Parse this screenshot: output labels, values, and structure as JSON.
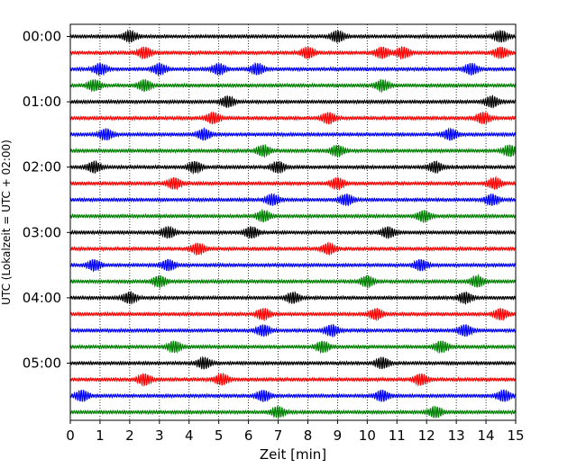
{
  "chart_data": {
    "type": "line",
    "title": "",
    "xlabel": "Zeit  [min]",
    "ylabel": "UTC (Lokalzeit = UTC + 02:00)",
    "xlim": [
      0,
      15
    ],
    "x_ticks": [
      0,
      1,
      2,
      3,
      4,
      5,
      6,
      7,
      8,
      9,
      10,
      11,
      12,
      13,
      14,
      15
    ],
    "x_tick_labels": [
      "0",
      "1",
      "2",
      "3",
      "4",
      "5",
      "6",
      "7",
      "8",
      "9",
      "10",
      "11",
      "12",
      "13",
      "14",
      "15"
    ],
    "y_tick_labels": [
      "00:00",
      "01:00",
      "02:00",
      "03:00",
      "04:00",
      "05:00"
    ],
    "grid": "vertical dotted",
    "trace_minutes_each": 15,
    "trace_count": 24,
    "trace_colors": [
      "#000000",
      "#ff0000",
      "#0000ff",
      "#008000"
    ],
    "series": [
      {
        "row_start": "00:00",
        "bursts_min": [
          2.0,
          9.0,
          14.5
        ]
      },
      {
        "row_start": "00:15",
        "bursts_min": [
          2.5,
          8.0,
          10.5,
          11.2,
          14.5
        ]
      },
      {
        "row_start": "00:30",
        "bursts_min": [
          1.0,
          3.0,
          5.0,
          6.3,
          13.5
        ]
      },
      {
        "row_start": "00:45",
        "bursts_min": [
          0.8,
          2.5,
          10.5
        ]
      },
      {
        "row_start": "01:00",
        "bursts_min": [
          5.3,
          14.2
        ]
      },
      {
        "row_start": "01:15",
        "bursts_min": [
          4.8,
          8.7,
          13.9
        ]
      },
      {
        "row_start": "01:30",
        "bursts_min": [
          1.2,
          4.5,
          12.8
        ]
      },
      {
        "row_start": "01:45",
        "bursts_min": [
          6.5,
          9.0,
          14.8
        ]
      },
      {
        "row_start": "02:00",
        "bursts_min": [
          0.8,
          4.2,
          7.0,
          12.3
        ]
      },
      {
        "row_start": "02:15",
        "bursts_min": [
          3.5,
          9.0,
          14.3
        ]
      },
      {
        "row_start": "02:30",
        "bursts_min": [
          6.8,
          9.3,
          14.2
        ]
      },
      {
        "row_start": "02:45",
        "bursts_min": [
          6.5,
          11.9
        ]
      },
      {
        "row_start": "03:00",
        "bursts_min": [
          3.3,
          6.1,
          10.7
        ]
      },
      {
        "row_start": "03:15",
        "bursts_min": [
          4.3,
          8.7
        ]
      },
      {
        "row_start": "03:30",
        "bursts_min": [
          0.8,
          3.3,
          11.8
        ]
      },
      {
        "row_start": "03:45",
        "bursts_min": [
          3.0,
          10.0,
          13.7
        ]
      },
      {
        "row_start": "04:00",
        "bursts_min": [
          2.0,
          7.5,
          13.3
        ]
      },
      {
        "row_start": "04:15",
        "bursts_min": [
          6.5,
          10.3,
          14.5
        ]
      },
      {
        "row_start": "04:30",
        "bursts_min": [
          6.5,
          8.8,
          13.3
        ]
      },
      {
        "row_start": "04:45",
        "bursts_min": [
          3.5,
          8.5,
          12.5
        ]
      },
      {
        "row_start": "05:00",
        "bursts_min": [
          4.5,
          10.5
        ]
      },
      {
        "row_start": "05:15",
        "bursts_min": [
          2.5,
          5.1,
          11.8
        ]
      },
      {
        "row_start": "05:30",
        "bursts_min": [
          0.4,
          6.5,
          10.5,
          14.6
        ]
      },
      {
        "row_start": "05:45",
        "bursts_min": [
          7.0,
          12.3
        ]
      }
    ]
  }
}
